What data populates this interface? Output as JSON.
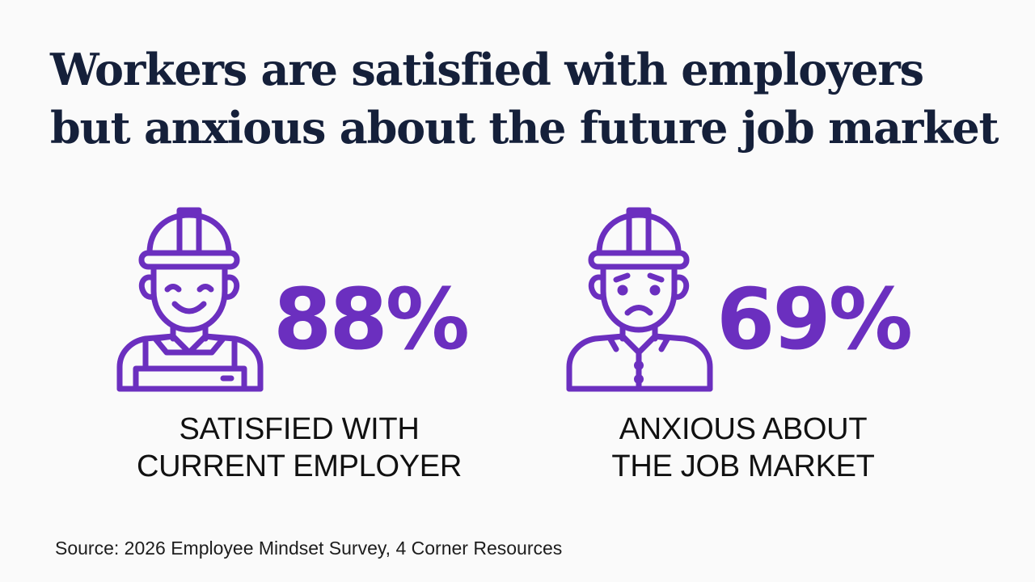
{
  "headline": {
    "line1": "Workers are satisfied with employers",
    "line2": "but anxious about the future job market"
  },
  "accent_color": "#6b2fbf",
  "stats": [
    {
      "icon": "happy-worker-icon",
      "value": "88%",
      "label_line1": "SATISFIED WITH",
      "label_line2": "CURRENT EMPLOYER"
    },
    {
      "icon": "worried-worker-icon",
      "value": "69%",
      "label_line1": "ANXIOUS ABOUT",
      "label_line2": "THE JOB MARKET"
    }
  ],
  "source": "Source: 2026 Employee Mindset Survey, 4 Corner Resources"
}
